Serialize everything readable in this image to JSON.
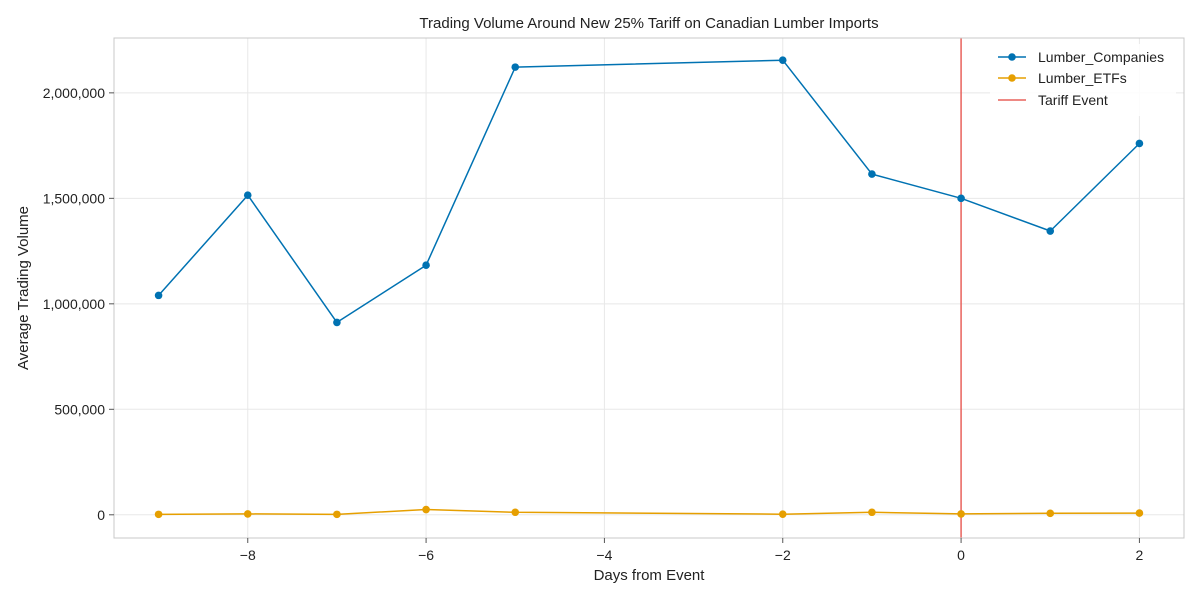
{
  "chart_data": {
    "type": "line",
    "title": "Trading Volume Around New 25% Tariff on Canadian Lumber Imports",
    "xlabel": "Days from Event",
    "ylabel": "Average Trading Volume",
    "xlim": [
      -9.5,
      2.5
    ],
    "ylim": [
      -110000,
      2260000
    ],
    "x_ticks": [
      -8,
      -6,
      -4,
      -2,
      0,
      2
    ],
    "x_tick_labels": [
      "−8",
      "−6",
      "−4",
      "−2",
      "0",
      "2"
    ],
    "y_ticks": [
      0,
      500000,
      1000000,
      1500000,
      2000000
    ],
    "y_tick_labels": [
      "0",
      "500,000",
      "1,000,000",
      "1,500,000",
      "2,000,000"
    ],
    "grid": true,
    "legend_position": "top-right",
    "series": [
      {
        "name": "Lumber_Companies",
        "color": "#0072b2",
        "x": [
          -9,
          -8,
          -7,
          -6,
          -5,
          -2,
          -1,
          0,
          1,
          2
        ],
        "values": [
          1040000,
          1515000,
          912000,
          1183000,
          2122000,
          2155000,
          1615000,
          1500000,
          1345000,
          1760000
        ]
      },
      {
        "name": "Lumber_ETFs",
        "color": "#e69f00",
        "x": [
          -9,
          -8,
          -7,
          -6,
          -5,
          -2,
          -1,
          0,
          1,
          2
        ],
        "values": [
          2000,
          4000,
          2000,
          25000,
          12000,
          3000,
          12000,
          4000,
          7000,
          8000
        ]
      }
    ],
    "vline": {
      "x": 0,
      "name": "Tariff Event",
      "color": "#e8625c"
    }
  }
}
